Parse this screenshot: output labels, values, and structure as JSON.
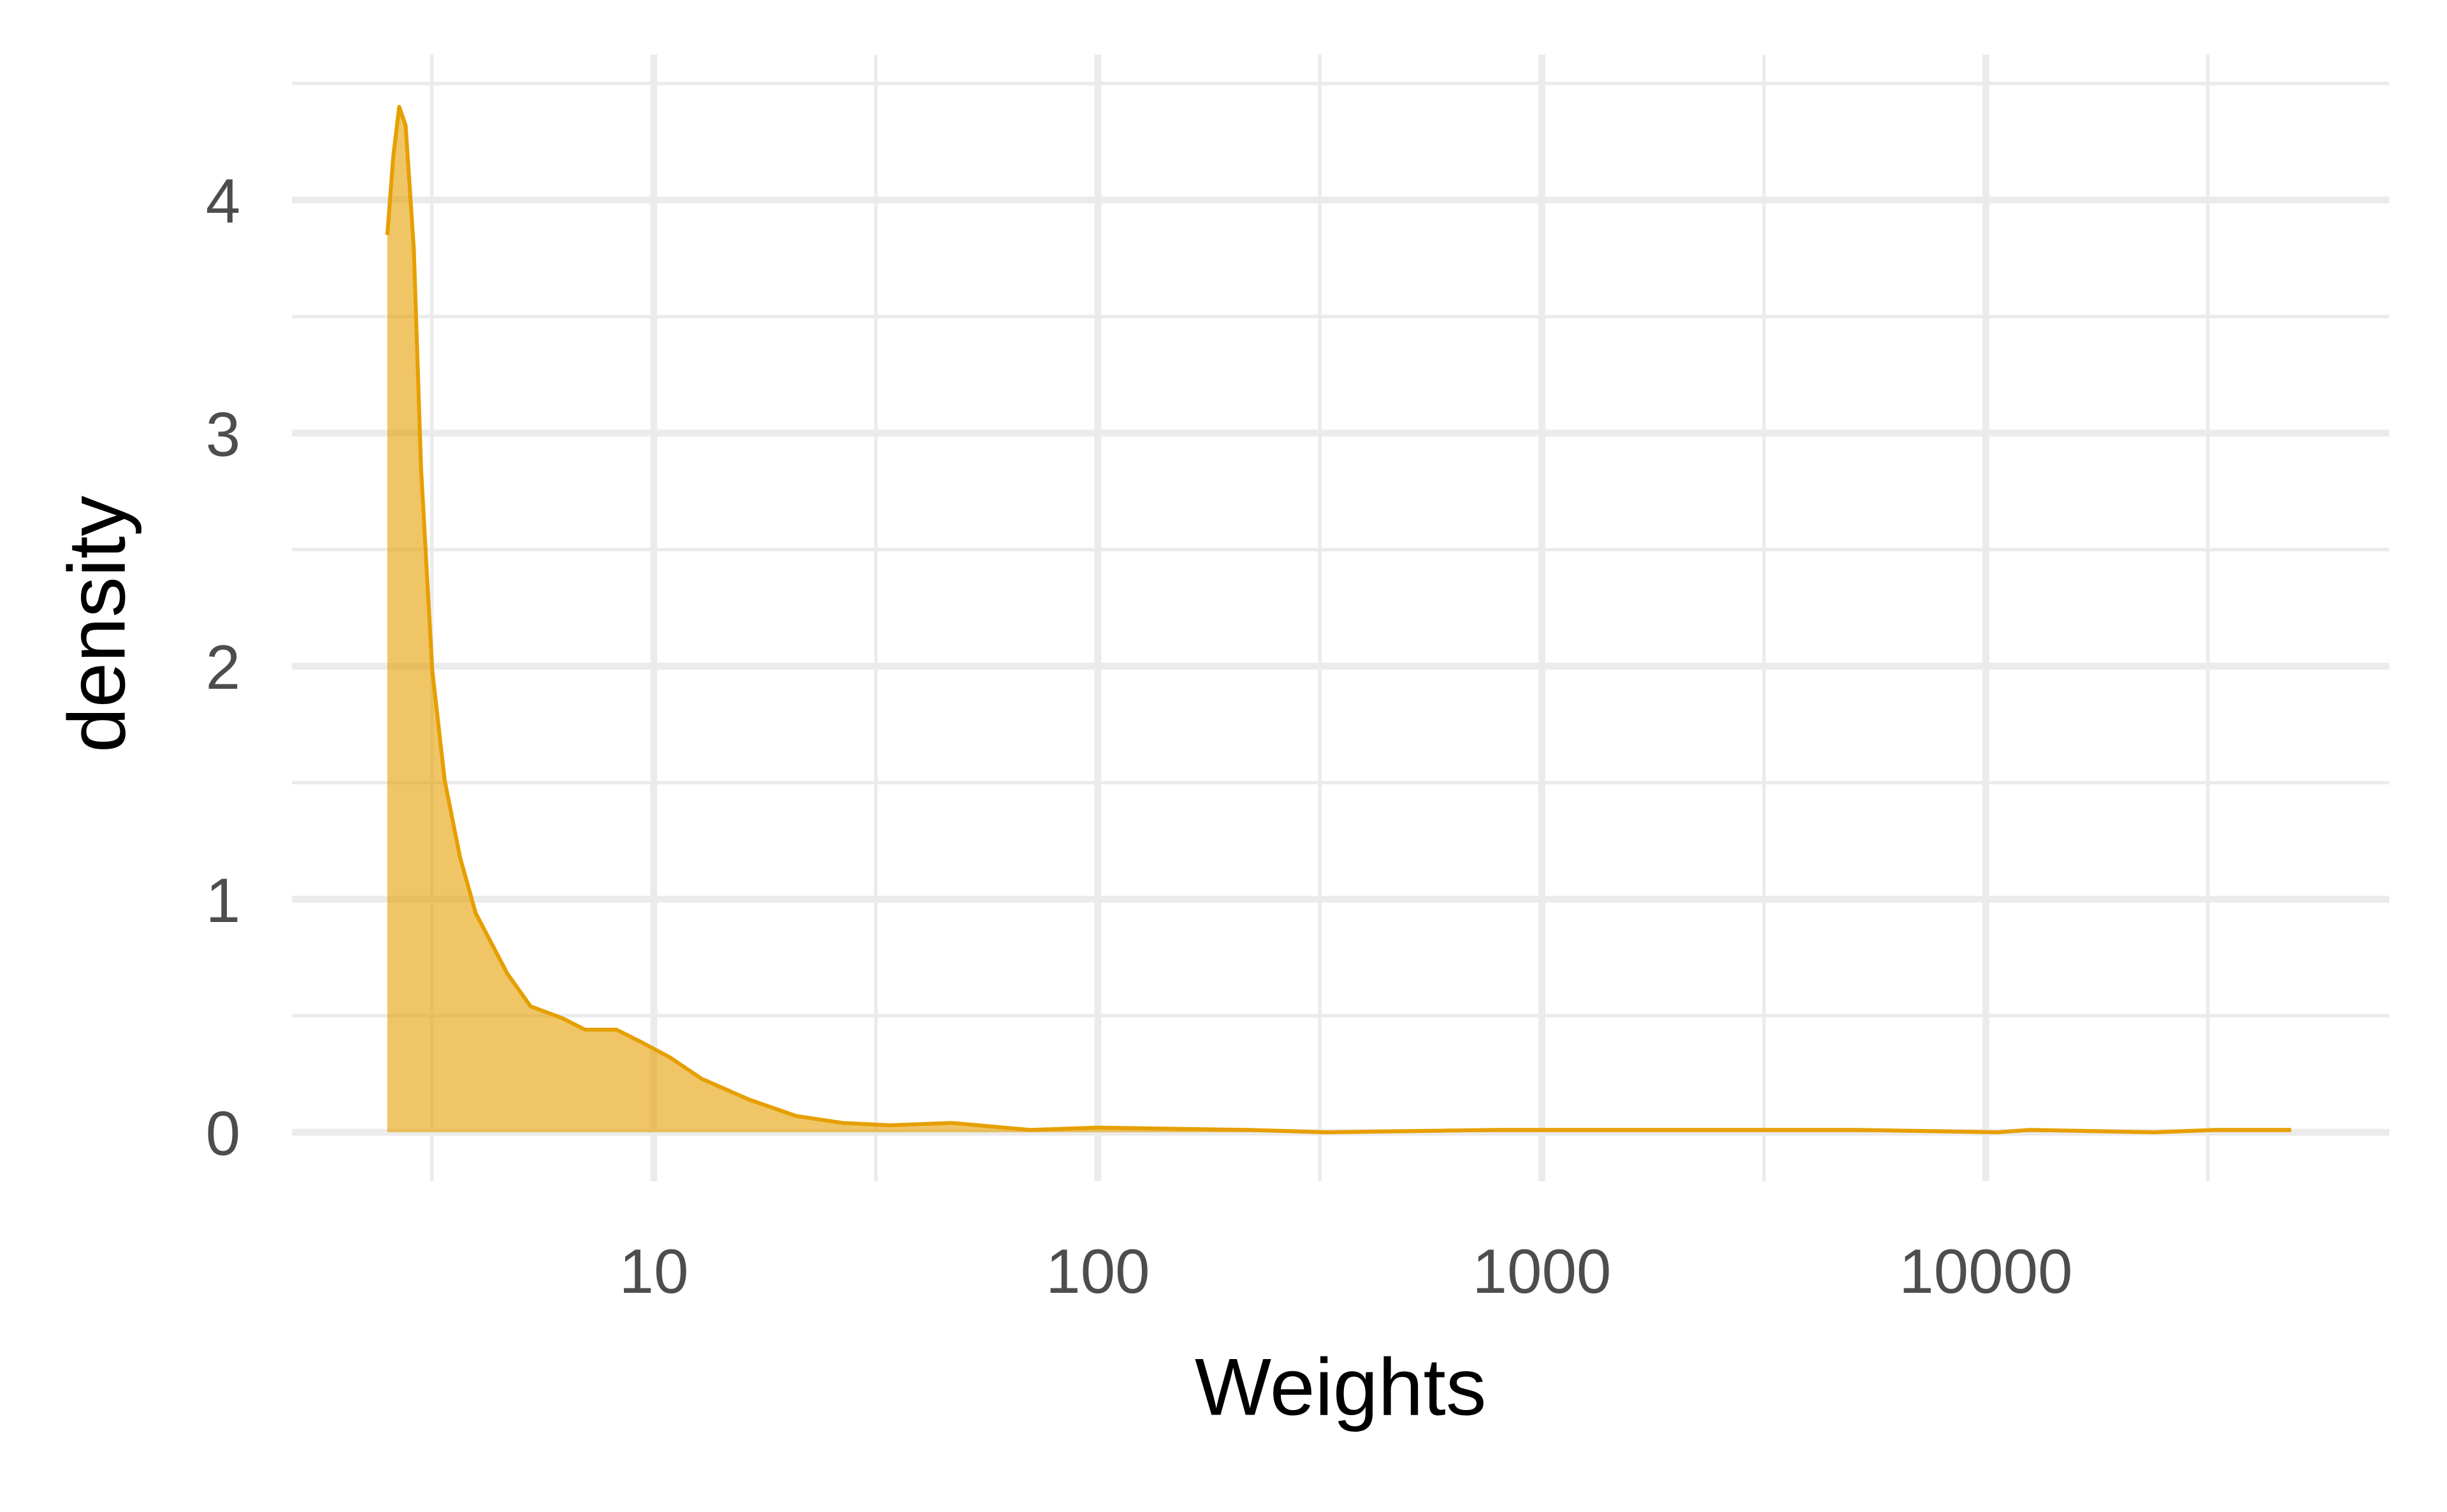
{
  "chart_data": {
    "type": "area",
    "x_label": "Weights",
    "y_label": "density",
    "log_x": true,
    "grid": true,
    "color": "#E69F00",
    "x": [
      2.51,
      2.59,
      2.67,
      2.76,
      2.88,
      2.99,
      3.17,
      3.38,
      3.66,
      3.97,
      4.68,
      5.28,
      6.21,
      7.0,
      8.24,
      9.3,
      10.9,
      12.8,
      16.4,
      20.9,
      26.6,
      34.0,
      46.9,
      70.3,
      100,
      218,
      327,
      797,
      1652,
      5130,
      10670,
      12540,
      23900,
      33000,
      48700
    ],
    "values": [
      3.85,
      4.19,
      4.4,
      4.32,
      3.79,
      2.85,
      1.98,
      1.51,
      1.18,
      0.94,
      0.68,
      0.54,
      0.49,
      0.44,
      0.44,
      0.39,
      0.32,
      0.23,
      0.14,
      0.07,
      0.04,
      0.03,
      0.04,
      0.01,
      0.02,
      0.01,
      0,
      0.01,
      0.01,
      0.01,
      0,
      0.01,
      0,
      0.01,
      0.01
    ],
    "xlim": [
      1.53,
      81000
    ],
    "xticks": [
      10,
      100,
      1000,
      10000
    ],
    "x_minor_grid": [
      3.162,
      31.62,
      316.2,
      3162,
      31623
    ],
    "ylim": [
      -0.21,
      4.51
    ],
    "yticks": [
      0,
      1,
      2,
      3,
      4
    ],
    "y_minor_grid": [
      0.5,
      1.5,
      2.5,
      3.5,
      4.5
    ]
  }
}
